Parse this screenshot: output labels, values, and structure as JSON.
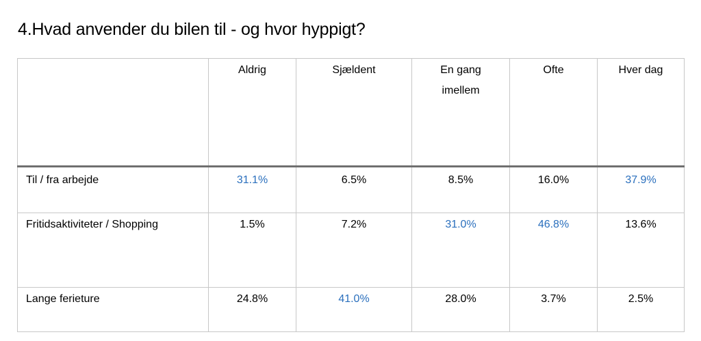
{
  "title": "4.Hvad anvender du bilen til - og hvor hyppigt?",
  "columns": [
    "Aldrig",
    "Sjældent",
    "En gang imellem",
    "Ofte",
    "Hver dag"
  ],
  "rows": [
    {
      "label": "Til / fra arbejde",
      "values": [
        "31.1%",
        "6.5%",
        "8.5%",
        "16.0%",
        "37.9%"
      ],
      "highlight": [
        true,
        false,
        false,
        false,
        true
      ]
    },
    {
      "label": "Fritidsaktiviteter / Shopping",
      "values": [
        "1.5%",
        "7.2%",
        "31.0%",
        "46.8%",
        "13.6%"
      ],
      "highlight": [
        false,
        false,
        true,
        true,
        false
      ]
    },
    {
      "label": "Lange ferieture",
      "values": [
        "24.8%",
        "41.0%",
        "28.0%",
        "3.7%",
        "2.5%"
      ],
      "highlight": [
        false,
        true,
        false,
        false,
        false
      ]
    }
  ],
  "colors": {
    "highlight": "#2a6fbd",
    "border": "#c7c7c7",
    "header_rule": "#6f6f6f"
  }
}
